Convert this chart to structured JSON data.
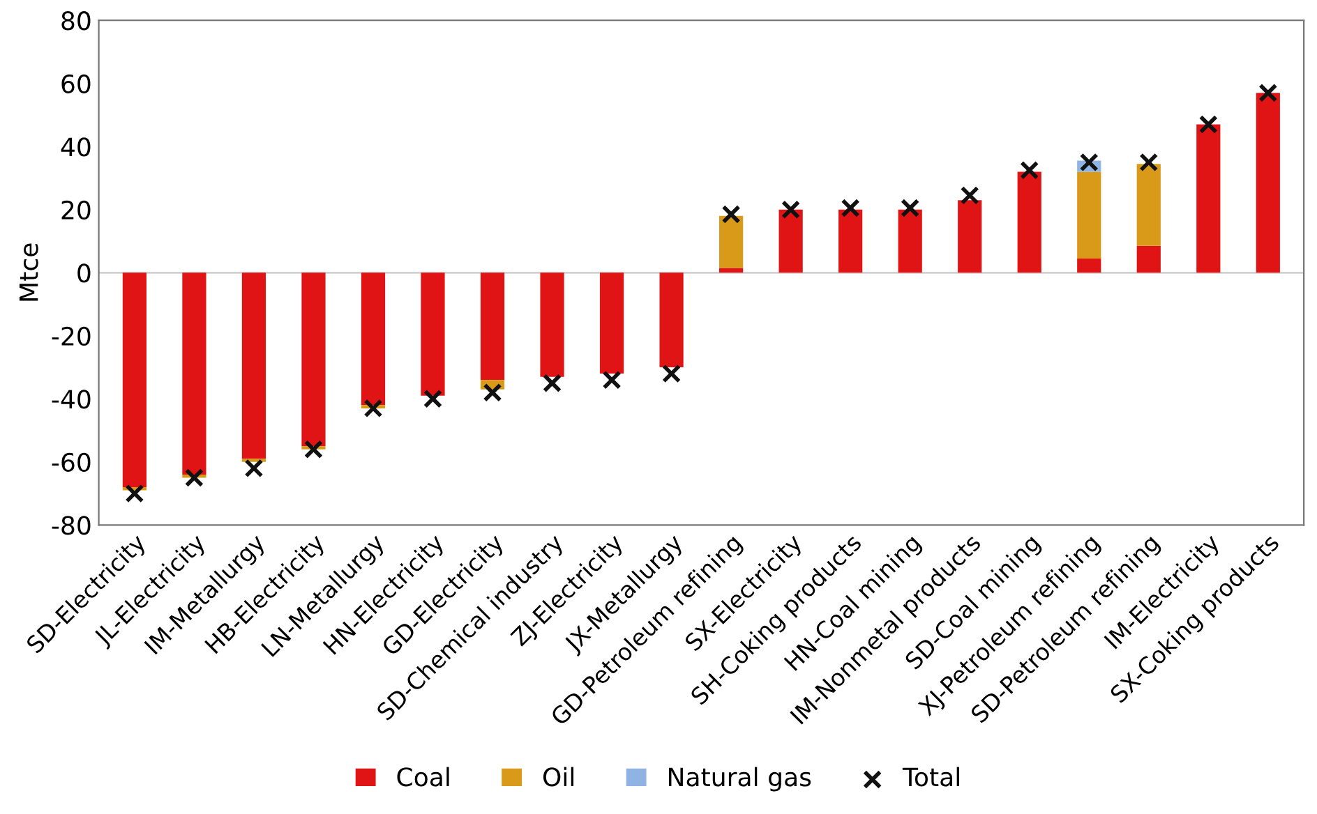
{
  "chart_data": {
    "type": "bar",
    "stacked": true,
    "ylabel": "Mtce",
    "categories": [
      "SD-Electricity",
      "JL-Electricity",
      "IM-Metallurgy",
      "HB-Electricity",
      "LN-Metallurgy",
      "HN-Electricity",
      "GD-Electricity",
      "SD-Chemical industry",
      "ZJ-Electricity",
      "JX-Metallurgy",
      "GD-Petroleum refining",
      "SX-Electricity",
      "SH-Coking products",
      "HN-Coal mining",
      "IM-Nonmetal products",
      "SD-Coal mining",
      "XJ-Petroleum refining",
      "SD-Petroleum refining",
      "IM-Electricity",
      "SX-Coking products"
    ],
    "series": [
      {
        "name": "Coal",
        "color": "#e01414",
        "values": [
          -68,
          -64,
          -59,
          -55,
          -42,
          -39,
          -34,
          -33,
          -32,
          -30,
          1.5,
          20,
          20,
          20,
          23,
          32,
          4.5,
          8.5,
          47,
          57
        ]
      },
      {
        "name": "Oil",
        "color": "#d99a1a",
        "values": [
          -1,
          -1,
          -1,
          -1,
          -1,
          0,
          -3,
          null,
          0,
          null,
          16.5,
          0,
          0,
          0,
          null,
          0,
          27.5,
          26,
          0,
          0
        ]
      },
      {
        "name": "Natural gas",
        "color": "#8fb4e3",
        "values": [
          0,
          0,
          0,
          0,
          0,
          0,
          0,
          0,
          0,
          0,
          0,
          0,
          0,
          0,
          0,
          0,
          3.5,
          0,
          0,
          0
        ]
      },
      {
        "name": "Total",
        "type": "scatter",
        "marker": "cross",
        "color": "#111111",
        "values": [
          -70,
          -65,
          -62,
          -56,
          -43,
          -40,
          -38,
          -35,
          -34,
          -32,
          18.5,
          20,
          20.5,
          20.5,
          24.5,
          32.5,
          35,
          35,
          47,
          57
        ]
      }
    ],
    "ylim": [
      -80,
      80
    ],
    "yticks": [
      -80,
      -60,
      -40,
      -20,
      0,
      20,
      40,
      60,
      80
    ],
    "ref_lines": [
      {
        "axis": "y",
        "value": 0,
        "color": "#d0d0d0"
      }
    ],
    "grid": false,
    "legend": "bottom"
  }
}
